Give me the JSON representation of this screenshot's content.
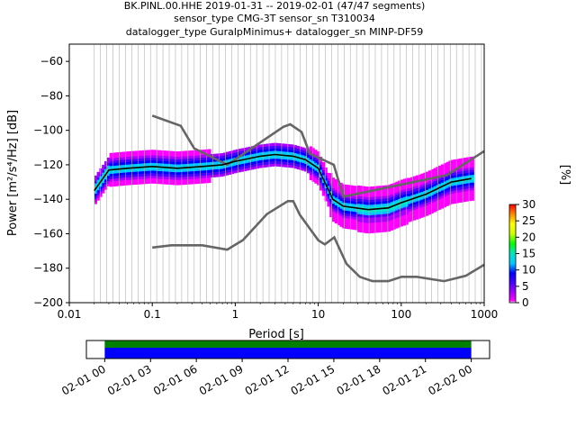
{
  "title_lines": [
    "BK.PINL.00.HHE   2019-01-31 -- 2019-02-01  (47/47 segments)",
    "sensor_type CMG-3T sensor_sn T310034",
    "datalogger_type GuralpMinimus+ datalogger_sn MINP-DF59"
  ],
  "chart_data": [
    {
      "type": "heatmap",
      "xlabel": "Period [s]",
      "ylabel": "Power [m²/s⁴/Hz] [dB]",
      "xscale": "log",
      "xlim": [
        0.01,
        1000
      ],
      "ylim": [
        -200,
        -50
      ],
      "x_ticks": [
        {
          "value": 0.01,
          "label": "0.01"
        },
        {
          "value": 0.1,
          "label": "0.1"
        },
        {
          "value": 1,
          "label": "1"
        },
        {
          "value": 10,
          "label": "10"
        },
        {
          "value": 100,
          "label": "100"
        },
        {
          "value": 1000,
          "label": "1000"
        }
      ],
      "y_ticks": [
        -60,
        -80,
        -100,
        -120,
        -140,
        -160,
        -180,
        -200
      ],
      "grid": "vertical, at PSD period bins",
      "series": [
        {
          "name": "NHNM",
          "color": "#666666",
          "points": [
            [
              0.1,
              -91.5
            ],
            [
              0.22,
              -97.4
            ],
            [
              0.32,
              -110.5
            ],
            [
              0.8,
              -120
            ],
            [
              3.8,
              -98
            ],
            [
              4.6,
              -96.5
            ],
            [
              6.3,
              -101
            ],
            [
              7.9,
              -113.5
            ],
            [
              15.4,
              -120
            ],
            [
              20,
              -138.5
            ],
            [
              354.8,
              -126
            ],
            [
              1000,
              -112.1
            ]
          ]
        },
        {
          "name": "NLNM",
          "color": "#666666",
          "points": [
            [
              0.1,
              -168
            ],
            [
              0.17,
              -166.7
            ],
            [
              0.4,
              -166.7
            ],
            [
              0.8,
              -169.2
            ],
            [
              1.24,
              -163.7
            ],
            [
              2.4,
              -148.6
            ],
            [
              4.3,
              -141.1
            ],
            [
              5,
              -141.1
            ],
            [
              6,
              -149
            ],
            [
              10,
              -163.8
            ],
            [
              12,
              -166.2
            ],
            [
              15.6,
              -162.1
            ],
            [
              21.9,
              -177.5
            ],
            [
              31.6,
              -185
            ],
            [
              45,
              -187.5
            ],
            [
              70,
              -187.5
            ],
            [
              101,
              -185
            ],
            [
              154,
              -185
            ],
            [
              328,
              -187.5
            ],
            [
              600,
              -184.4
            ],
            [
              1000,
              -178
            ]
          ]
        },
        {
          "name": "median",
          "color": "#000000",
          "points": [
            [
              0.02,
              -135
            ],
            [
              0.03,
              -123
            ],
            [
              0.05,
              -122
            ],
            [
              0.1,
              -121
            ],
            [
              0.2,
              -122
            ],
            [
              0.4,
              -121
            ],
            [
              0.7,
              -120
            ],
            [
              1,
              -118
            ],
            [
              2,
              -115
            ],
            [
              3,
              -114
            ],
            [
              5,
              -115
            ],
            [
              7,
              -117
            ],
            [
              10,
              -122
            ],
            [
              15,
              -140
            ],
            [
              20,
              -144
            ],
            [
              40,
              -146
            ],
            [
              70,
              -145
            ],
            [
              100,
              -142
            ],
            [
              200,
              -137
            ],
            [
              400,
              -130
            ],
            [
              700,
              -128
            ]
          ]
        }
      ],
      "colorbar": {
        "label": "[%]",
        "range": [
          0,
          30
        ],
        "ticks": [
          0,
          5,
          10,
          15,
          20,
          25,
          30
        ]
      }
    },
    {
      "type": "timeline",
      "x_tick_labels": [
        "02-01 00",
        "02-01 03",
        "02-01 06",
        "02-01 09",
        "02-01 12",
        "02-01 15",
        "02-01 18",
        "02-01 21",
        "02-02 00"
      ],
      "x_range_hours": [
        -1.2,
        25.2
      ],
      "coverage_hours": [
        0,
        24
      ],
      "bar_colors": {
        "top": "#008000",
        "bottom": "#0000ff"
      }
    }
  ]
}
